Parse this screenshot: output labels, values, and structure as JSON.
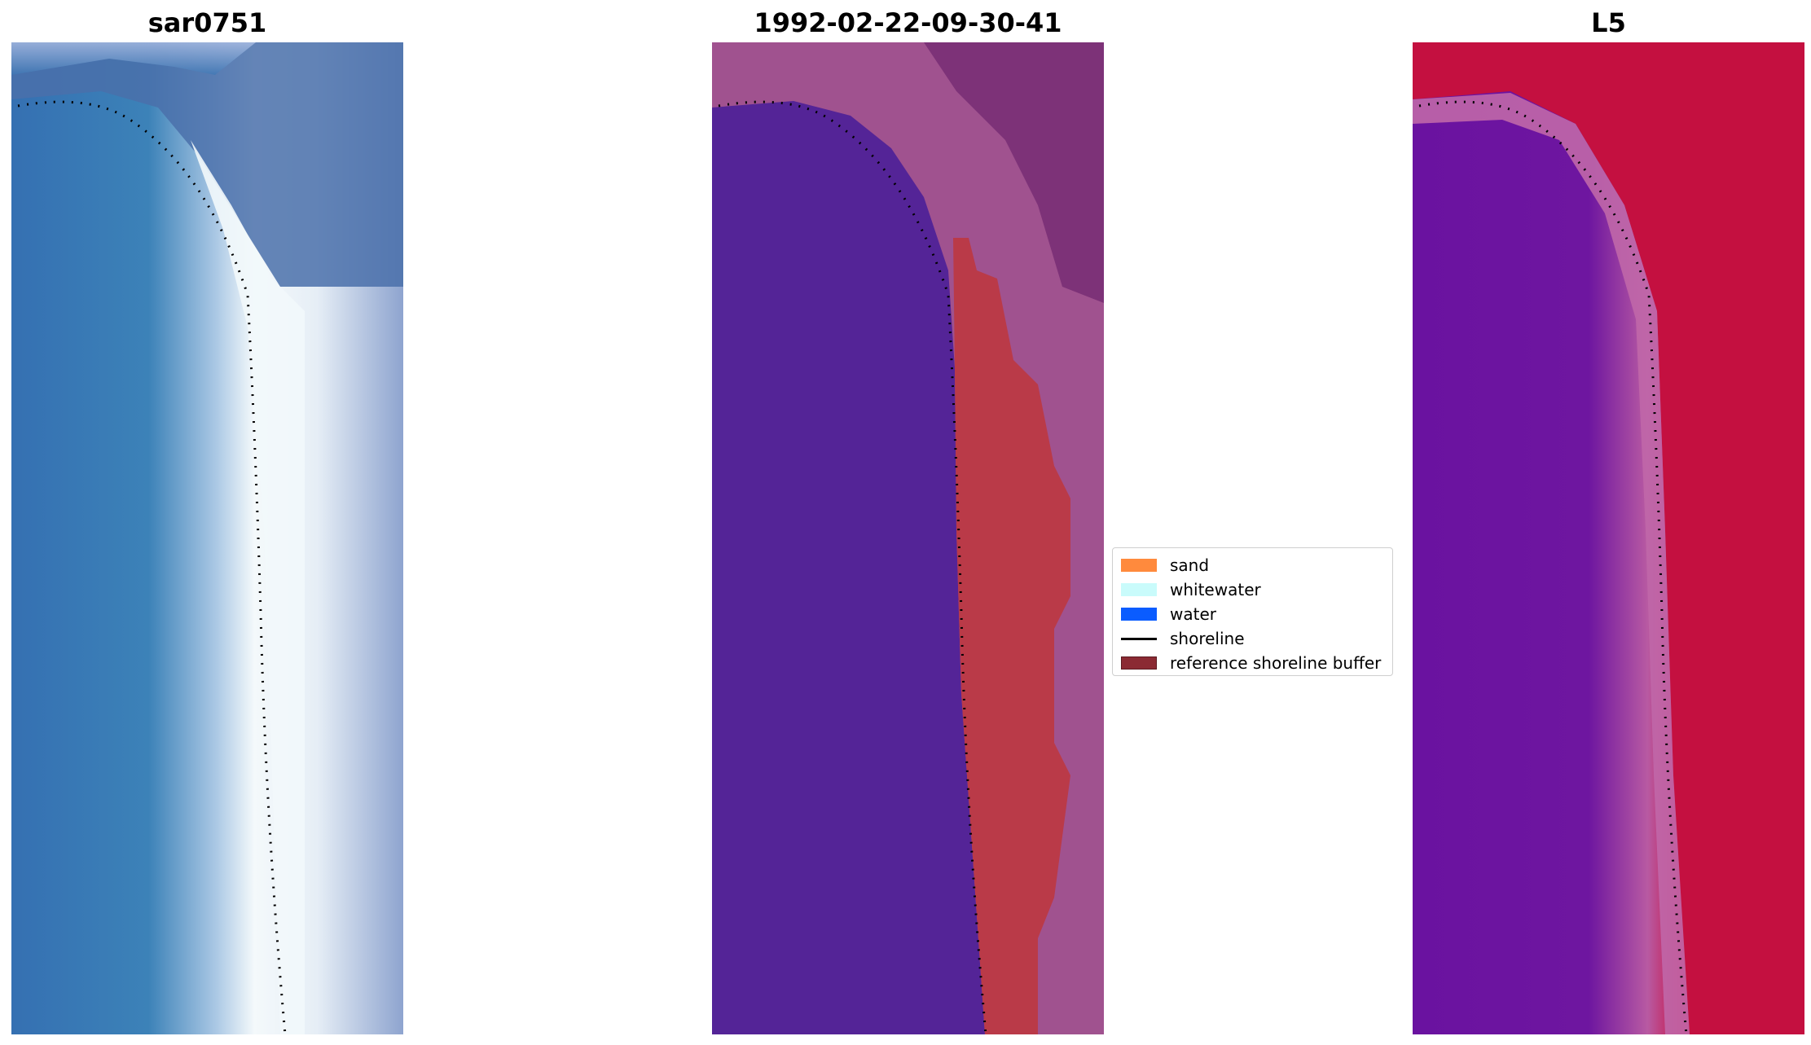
{
  "panels": [
    {
      "title": "sar0751"
    },
    {
      "title": "1992-02-22-09-30-41"
    },
    {
      "title": "L5"
    }
  ],
  "legend": {
    "items": [
      {
        "label": "sand",
        "color": "#ff8a3d"
      },
      {
        "label": "whitewater",
        "color": "#c9fbfb"
      },
      {
        "label": "water",
        "color": "#0a5cff"
      },
      {
        "label": "shoreline",
        "color": "#000000"
      },
      {
        "label": "reference shoreline buffer",
        "color": "#8b2a33"
      }
    ]
  },
  "colors": {
    "sar_water": "#3a7ab8",
    "sar_surf": "#eef6fb",
    "sar_land": "#4a70aa",
    "class_water": "#542497",
    "class_buffer": "#ba3a48",
    "class_land": "#a0528f",
    "l5_water": "#6a12a0",
    "l5_land": "#c0103a"
  }
}
